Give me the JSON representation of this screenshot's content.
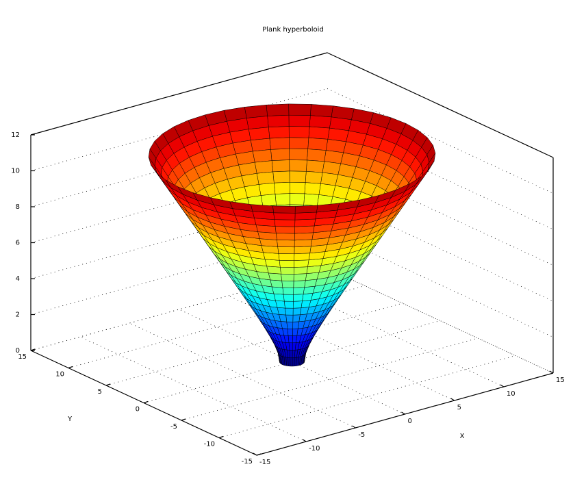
{
  "chart_data": {
    "type": "surface",
    "title": "Plank hyperboloid",
    "xlabel": "X",
    "ylabel": "Y",
    "xlim": [
      -15,
      15
    ],
    "ylim": [
      -15,
      15
    ],
    "zlim": [
      0,
      12
    ],
    "xticks": [
      -15,
      -10,
      -5,
      0,
      5,
      10,
      15
    ],
    "yticks": [
      -15,
      -10,
      -5,
      0,
      5,
      10,
      15
    ],
    "zticks": [
      0,
      2,
      4,
      6,
      8,
      10,
      12
    ],
    "grid": true,
    "colormap": "jet",
    "z": [
      0,
      0.5,
      1,
      1.5,
      2,
      2.5,
      3,
      3.5,
      4,
      4.5,
      5,
      5.5,
      6,
      6.5,
      7,
      7.5,
      8,
      8.5,
      9,
      9.5,
      10,
      10.5,
      11,
      11.5
    ],
    "radius": [
      1,
      1.118,
      1.414,
      1.803,
      2.236,
      2.693,
      3.162,
      3.64,
      4.123,
      4.61,
      5.099,
      5.59,
      6.083,
      6.576,
      7.071,
      7.566,
      8.062,
      8.559,
      9.055,
      9.552,
      10.05,
      10.547,
      11.045,
      11.543
    ]
  }
}
